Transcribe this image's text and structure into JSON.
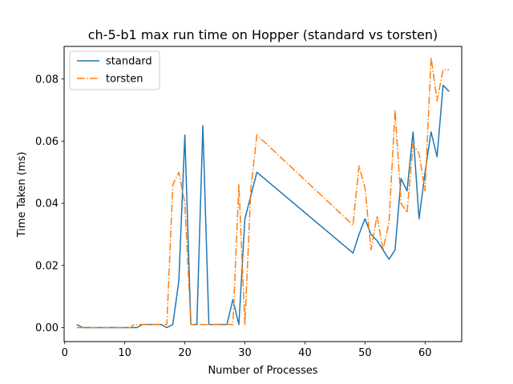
{
  "chart_data": {
    "type": "line",
    "title": "ch-5-b1 max run time on Hopper (standard vs torsten)",
    "xlabel": "Number of Processes",
    "ylabel": "Time Taken (ms)",
    "xlim": [
      -0.1,
      66.1
    ],
    "ylim": [
      -0.0045,
      0.0905
    ],
    "xticks": [
      0,
      10,
      20,
      30,
      40,
      50,
      60
    ],
    "yticks": [
      0.0,
      0.02,
      0.04,
      0.06,
      0.08
    ],
    "ytick_labels": [
      "0.00",
      "0.02",
      "0.04",
      "0.06",
      "0.08"
    ],
    "legend_position": "upper-left",
    "series": [
      {
        "name": "standard",
        "color": "#1f77b4",
        "style": "solid",
        "points": [
          [
            2,
            0.001
          ],
          [
            3,
            0.0
          ],
          [
            4,
            0.0
          ],
          [
            5,
            0.0
          ],
          [
            8,
            0.0
          ],
          [
            10,
            0.0
          ],
          [
            12,
            0.0
          ],
          [
            13,
            0.001
          ],
          [
            16,
            0.001
          ],
          [
            17,
            0.0
          ],
          [
            18,
            0.001
          ],
          [
            19,
            0.015
          ],
          [
            20,
            0.062
          ],
          [
            21,
            0.001
          ],
          [
            22,
            0.001
          ],
          [
            23,
            0.065
          ],
          [
            24,
            0.001
          ],
          [
            27,
            0.001
          ],
          [
            28,
            0.009
          ],
          [
            29,
            0.001
          ],
          [
            30,
            0.035
          ],
          [
            32,
            0.05
          ],
          [
            48,
            0.024
          ],
          [
            49,
            0.03
          ],
          [
            50,
            0.035
          ],
          [
            51,
            0.03
          ],
          [
            52,
            0.028
          ],
          [
            53,
            0.025
          ],
          [
            54,
            0.022
          ],
          [
            55,
            0.025
          ],
          [
            56,
            0.048
          ],
          [
            57,
            0.044
          ],
          [
            58,
            0.063
          ],
          [
            59,
            0.035
          ],
          [
            60,
            0.05
          ],
          [
            61,
            0.063
          ],
          [
            62,
            0.055
          ],
          [
            63,
            0.078
          ],
          [
            64,
            0.076
          ]
        ]
      },
      {
        "name": "torsten",
        "color": "#ff7f0e",
        "style": "dashdot",
        "points": [
          [
            2,
            0.0
          ],
          [
            5,
            0.0
          ],
          [
            8,
            0.0
          ],
          [
            11,
            0.0
          ],
          [
            11.5,
            0.001
          ],
          [
            16,
            0.001
          ],
          [
            17,
            0.001
          ],
          [
            18,
            0.046
          ],
          [
            19,
            0.05
          ],
          [
            20,
            0.04
          ],
          [
            21,
            0.001
          ],
          [
            22,
            0.001
          ],
          [
            23,
            0.001
          ],
          [
            24,
            0.001
          ],
          [
            25,
            0.001
          ],
          [
            26,
            0.001
          ],
          [
            27,
            0.001
          ],
          [
            28,
            0.001
          ],
          [
            29,
            0.046
          ],
          [
            30,
            0.001
          ],
          [
            31,
            0.045
          ],
          [
            32,
            0.062
          ],
          [
            48,
            0.033
          ],
          [
            49,
            0.052
          ],
          [
            50,
            0.045
          ],
          [
            51,
            0.025
          ],
          [
            52,
            0.036
          ],
          [
            53,
            0.025
          ],
          [
            54,
            0.034
          ],
          [
            55,
            0.07
          ],
          [
            56,
            0.04
          ],
          [
            57,
            0.037
          ],
          [
            58,
            0.059
          ],
          [
            59,
            0.056
          ],
          [
            60,
            0.044
          ],
          [
            61,
            0.087
          ],
          [
            62,
            0.073
          ],
          [
            63,
            0.083
          ],
          [
            64,
            0.083
          ]
        ]
      }
    ]
  }
}
